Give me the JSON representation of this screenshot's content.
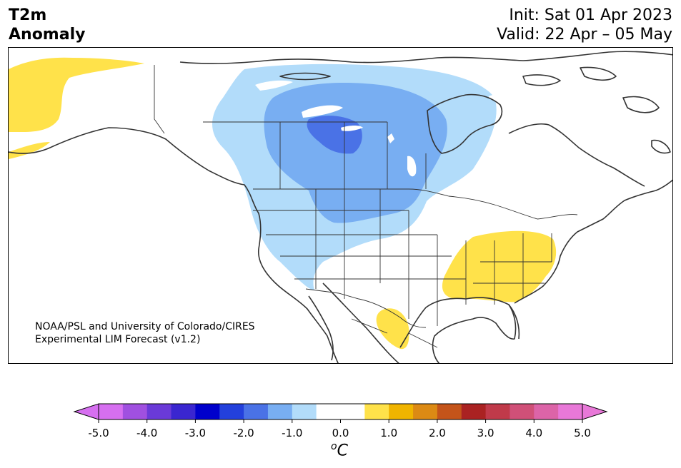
{
  "title": {
    "main_line1": "T2m",
    "main_line2": "Anomaly",
    "init": "Init: Sat 01 Apr 2023",
    "valid": "Valid: 22 Apr – 05 May"
  },
  "credit": {
    "line1": "NOAA/PSL and University of Colorado/CIRES",
    "line2": "Experimental LIM Forecast (v1.2)"
  },
  "colorbar": {
    "unit_superscript": "o",
    "unit_main": "C",
    "ticks": [
      "-5.0",
      "-4.0",
      "-3.0",
      "-2.0",
      "-1.0",
      "0.0",
      "1.0",
      "2.0",
      "3.0",
      "4.0",
      "5.0"
    ],
    "colors": [
      "#d66ff0",
      "#a050e0",
      "#6a3ad8",
      "#3a26d0",
      "#0000cc",
      "#2340dc",
      "#4a72e6",
      "#78aef2",
      "#b2dcfa",
      "#ffffff",
      "#ffffff",
      "#ffe24a",
      "#f0b400",
      "#dc8a14",
      "#c4541a",
      "#aa2222",
      "#c03a4a",
      "#d05078",
      "#dc64a8",
      "#e878d8"
    ],
    "under_color": "#d66ff0",
    "over_color": "#e878d8"
  },
  "anomaly_regions": [
    {
      "name": "canada-northern-plains-cold",
      "level_c": -1.0,
      "color": "#b2dcfa"
    },
    {
      "name": "canada-prairies-cold",
      "level_c": -1.5,
      "color": "#78aef2"
    },
    {
      "name": "saskatchewan-core-cold",
      "level_c": -2.0,
      "color": "#4a72e6"
    },
    {
      "name": "alaska-warm",
      "level_c": 0.5,
      "color": "#ffe24a"
    },
    {
      "name": "southeast-us-warm",
      "level_c": 0.5,
      "color": "#ffe24a"
    },
    {
      "name": "mexico-warm",
      "level_c": 0.5,
      "color": "#ffe24a"
    }
  ]
}
